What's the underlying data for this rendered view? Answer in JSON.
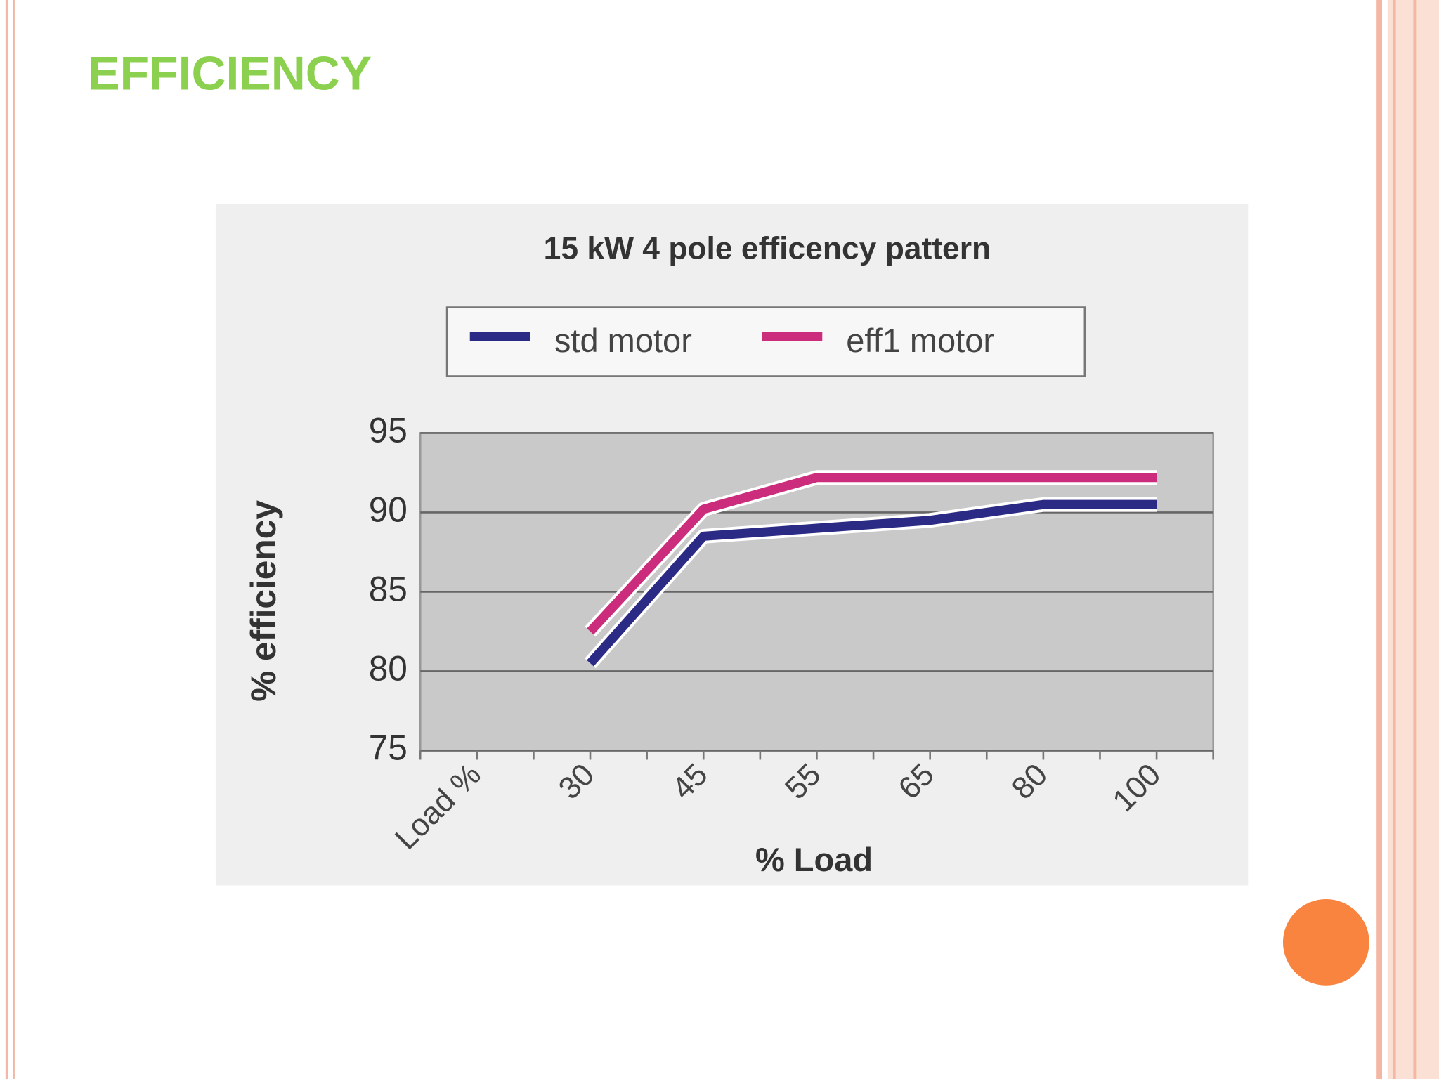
{
  "slide_title": "EFFICIENCY",
  "chart_data": {
    "type": "line",
    "title": "15 kW 4 pole  efficency pattern",
    "x_label": "% Load",
    "y_label": "% efficiency",
    "categories": [
      "Load %",
      "30",
      "45",
      "55",
      "65",
      "80",
      "100"
    ],
    "series": [
      {
        "name": "std motor",
        "color": "#2b2a85",
        "values": [
          null,
          80.5,
          88.5,
          89,
          89.5,
          90.5,
          90.5
        ]
      },
      {
        "name": "eff1 motor",
        "color": "#cc2c7c",
        "values": [
          null,
          82.5,
          90.2,
          92.2,
          92.2,
          92.2,
          92.2
        ]
      }
    ],
    "ylim": [
      75,
      95
    ],
    "yticks": [
      75,
      80,
      85,
      90,
      95
    ],
    "grid": true
  }
}
